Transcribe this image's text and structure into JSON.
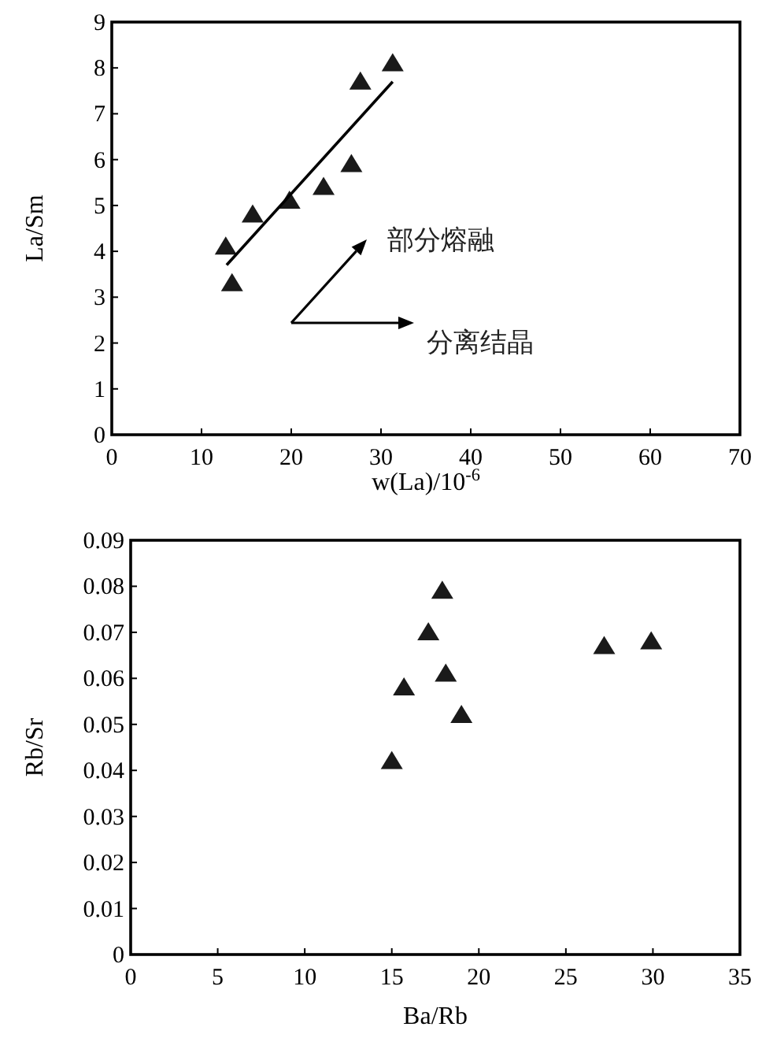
{
  "chart_data": [
    {
      "type": "scatter",
      "xlabel": "w(La)/10$^{-6}$",
      "ylabel": "La/Sm",
      "xlim": [
        0,
        70
      ],
      "ylim": [
        0,
        9
      ],
      "xticks": [
        0,
        10,
        20,
        30,
        40,
        50,
        60,
        70
      ],
      "yticks": [
        0,
        1,
        2,
        3,
        4,
        5,
        6,
        7,
        8,
        9
      ],
      "series": [
        {
          "type": "scatter",
          "marker": "triangle",
          "color": "#1a1a1a",
          "x": [
            12.7,
            13.4,
            15.7,
            19.8,
            23.6,
            26.7,
            27.7,
            31.3
          ],
          "values": [
            4.1,
            3.3,
            4.8,
            5.1,
            5.4,
            5.9,
            7.7,
            8.1
          ]
        },
        {
          "type": "line",
          "color": "#000000",
          "x": [
            12.8,
            31.3
          ],
          "values": [
            3.7,
            7.7
          ]
        }
      ],
      "annotations": [
        "部分熔融",
        "分离结晶"
      ]
    },
    {
      "type": "scatter",
      "xlabel": "Ba/Rb",
      "ylabel": "Rb/Sr",
      "xlim": [
        0,
        35
      ],
      "ylim": [
        0,
        0.09
      ],
      "xticks": [
        0,
        5,
        10,
        15,
        20,
        25,
        30,
        35
      ],
      "yticks": [
        0,
        0.01,
        0.02,
        0.03,
        0.04,
        0.05,
        0.06,
        0.07,
        0.08,
        0.09
      ],
      "marker": "triangle",
      "series": [
        {
          "type": "scatter",
          "color": "#1a1a1a",
          "x": [
            15.0,
            15.7,
            17.1,
            17.9,
            18.1,
            19.0,
            27.2,
            29.9
          ],
          "values": [
            0.042,
            0.058,
            0.07,
            0.079,
            0.061,
            0.052,
            0.067,
            0.068
          ]
        }
      ]
    }
  ]
}
